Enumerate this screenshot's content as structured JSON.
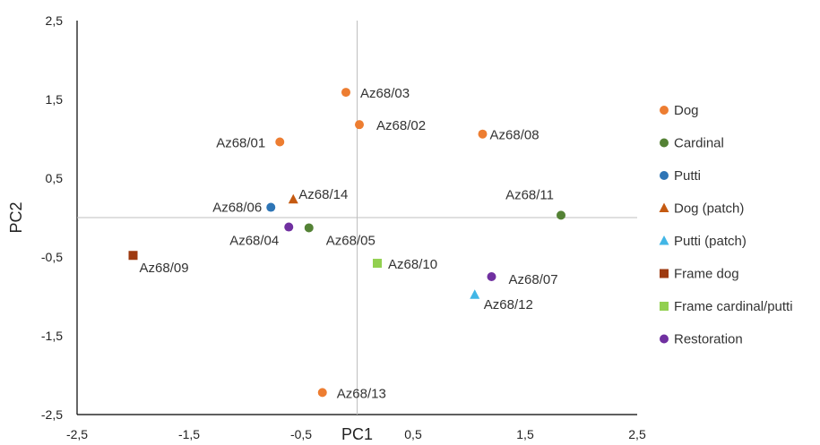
{
  "chart_data": {
    "type": "scatter",
    "title": "",
    "xlabel": "PC1",
    "ylabel": "PC2",
    "xlim": [
      -2.5,
      2.5
    ],
    "ylim": [
      -2.5,
      2.5
    ],
    "x_ticks": [
      -2.5,
      -1.5,
      -0.5,
      0.5,
      1.5,
      2.5
    ],
    "y_ticks": [
      -2.5,
      -1.5,
      -0.5,
      0.5,
      1.5,
      2.5
    ],
    "x_tick_labels": [
      "-2,5",
      "-1,5",
      "-0,5",
      "0,5",
      "1,5",
      "2,5"
    ],
    "y_tick_labels": [
      "-2,5",
      "-1,5",
      "-0,5",
      "0,5",
      "1,5",
      "2,5"
    ],
    "grid": false,
    "legend_position": "right",
    "series": [
      {
        "name": "Dog",
        "marker": "circle",
        "color": "#ED7D31",
        "points": [
          {
            "label": "Az68/01",
            "x": -0.69,
            "y": 0.96
          },
          {
            "label": "Az68/02",
            "x": 0.02,
            "y": 1.18
          },
          {
            "label": "Az68/03",
            "x": -0.1,
            "y": 1.59
          },
          {
            "label": "Az68/08",
            "x": 1.12,
            "y": 1.06
          },
          {
            "label": "Az68/13",
            "x": -0.31,
            "y": -2.22
          }
        ]
      },
      {
        "name": "Cardinal",
        "marker": "circle",
        "color": "#548235",
        "points": [
          {
            "label": "Az68/05",
            "x": -0.43,
            "y": -0.13
          },
          {
            "label": "Az68/11",
            "x": 1.82,
            "y": 0.03
          }
        ]
      },
      {
        "name": "Putti",
        "marker": "circle",
        "color": "#2E75B6",
        "points": [
          {
            "label": "Az68/06",
            "x": -0.77,
            "y": 0.13
          }
        ]
      },
      {
        "name": "Dog (patch)",
        "marker": "triangle",
        "color": "#C55A11",
        "points": [
          {
            "label": "Az68/14",
            "x": -0.57,
            "y": 0.23
          }
        ]
      },
      {
        "name": "Putti (patch)",
        "marker": "triangle",
        "color": "#41B6E6",
        "points": [
          {
            "label": "Az68/12",
            "x": 1.05,
            "y": -0.98
          }
        ]
      },
      {
        "name": "Frame dog",
        "marker": "square",
        "color": "#9E3A10",
        "points": [
          {
            "label": "Az68/09",
            "x": -2.0,
            "y": -0.48
          }
        ]
      },
      {
        "name": "Frame cardinal/putti",
        "marker": "square",
        "color": "#92D050",
        "points": [
          {
            "label": "Az68/10",
            "x": 0.18,
            "y": -0.58
          }
        ]
      },
      {
        "name": "Restoration",
        "marker": "circle",
        "color": "#7030A0",
        "points": [
          {
            "label": "Az68/04",
            "x": -0.61,
            "y": -0.12
          },
          {
            "label": "Az68/07",
            "x": 1.2,
            "y": -0.75
          }
        ]
      }
    ]
  }
}
